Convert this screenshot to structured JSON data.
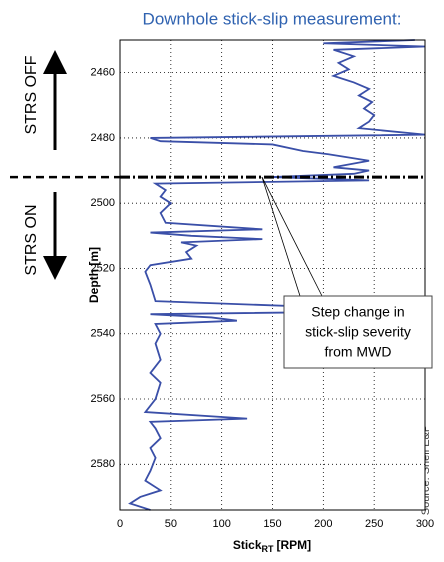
{
  "chart_data": {
    "type": "line",
    "title": "Downhole stick-slip measurement:",
    "xlabel": "Stick",
    "xlabel_sub": "RT",
    "xlabel_unit": "[RPM]",
    "ylabel": "Depth [m]",
    "xlim": [
      0,
      300
    ],
    "xticks": [
      0,
      50,
      100,
      150,
      200,
      250,
      300
    ],
    "ylim": [
      2450,
      2594
    ],
    "yticks": [
      2460,
      2480,
      2500,
      2520,
      2540,
      2560,
      2580
    ],
    "y_inverted": true,
    "grid": true,
    "depth": [
      2450,
      2451,
      2452,
      2453,
      2455,
      2457,
      2459,
      2461,
      2463,
      2465,
      2467,
      2469,
      2471,
      2473,
      2475,
      2477,
      2479,
      2480,
      2481,
      2482,
      2484,
      2485,
      2487,
      2489,
      2490,
      2491,
      2492,
      2493,
      2494,
      2496,
      2498,
      2500,
      2503,
      2506,
      2508,
      2509,
      2510,
      2511,
      2512,
      2513,
      2515,
      2517,
      2519,
      2521,
      2525,
      2530,
      2533,
      2534,
      2535,
      2536,
      2537,
      2540,
      2543,
      2548,
      2552,
      2555,
      2560,
      2564,
      2566,
      2567,
      2569,
      2572,
      2575,
      2578,
      2582,
      2585,
      2588,
      2590,
      2592,
      2594
    ],
    "series": [
      {
        "name": "Stick-slip",
        "color": "#3a4fa8",
        "values": [
          290,
          200,
          300,
          210,
          230,
          215,
          225,
          210,
          230,
          245,
          235,
          248,
          240,
          250,
          245,
          235,
          300,
          30,
          40,
          150,
          180,
          205,
          245,
          210,
          245,
          230,
          150,
          245,
          35,
          45,
          40,
          50,
          40,
          45,
          140,
          30,
          70,
          140,
          60,
          75,
          65,
          70,
          30,
          25,
          30,
          35,
          300,
          30,
          90,
          115,
          35,
          40,
          35,
          40,
          30,
          40,
          35,
          25,
          125,
          30,
          35,
          40,
          30,
          35,
          30,
          25,
          40,
          20,
          10,
          30
        ]
      }
    ],
    "marker_depth": 2492,
    "annotations": {
      "strs_off": "STRS OFF",
      "strs_on": "STRS ON",
      "callout": [
        "Step change in",
        "stick-slip severity",
        "from MWD"
      ],
      "source": "Source: Shell E&P"
    }
  }
}
